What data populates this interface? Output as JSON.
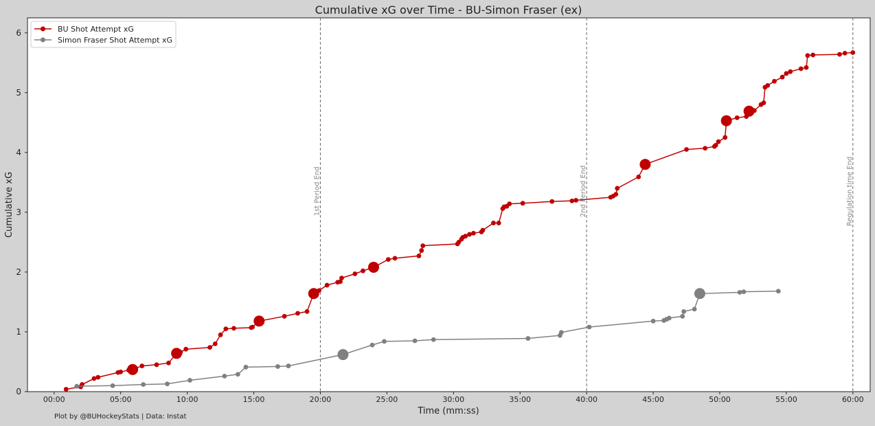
{
  "chart_data": {
    "type": "line",
    "title": "Cumulative xG over Time - BU-Simon Fraser (ex)",
    "xlabel": "Time (mm:ss)",
    "ylabel": "Cumulative xG",
    "xlim": [
      -2.0,
      61.3
    ],
    "ylim": [
      0,
      6.25
    ],
    "x_ticks": [
      0,
      5,
      10,
      15,
      20,
      25,
      30,
      35,
      40,
      45,
      50,
      55,
      60
    ],
    "x_tick_labels": [
      "00:00",
      "05:00",
      "10:00",
      "15:00",
      "20:00",
      "25:00",
      "30:00",
      "35:00",
      "40:00",
      "45:00",
      "50:00",
      "55:00",
      "60:00"
    ],
    "y_ticks": [
      0,
      1,
      2,
      3,
      4,
      5,
      6
    ],
    "y_tick_labels": [
      "0",
      "1",
      "2",
      "3",
      "4",
      "5",
      "6"
    ],
    "grid": false,
    "legend": "top-left",
    "vlines": [
      {
        "x": 20,
        "label": "1st Period End"
      },
      {
        "x": 40,
        "label": "2nd Period End"
      },
      {
        "x": 60,
        "label": "Regulation time End"
      }
    ],
    "series": [
      {
        "name": "BU Shot Attempt xG",
        "color": "#c00000",
        "x": [
          0.9,
          2.0,
          2.1,
          3.0,
          3.3,
          4.8,
          5.0,
          5.6,
          5.9,
          6.0,
          6.6,
          7.7,
          8.6,
          9.2,
          9.5,
          9.9,
          11.7,
          12.1,
          12.5,
          12.9,
          13.5,
          14.8,
          14.9,
          15.4,
          17.3,
          18.3,
          19.0,
          19.5,
          19.9,
          20.5,
          21.3,
          21.5,
          21.6,
          22.6,
          23.2,
          24.0,
          25.1,
          25.6,
          27.4,
          27.6,
          27.7,
          30.3,
          30.4,
          30.6,
          30.7,
          30.9,
          31.2,
          31.5,
          32.1,
          32.2,
          33.0,
          33.4,
          33.7,
          33.8,
          34.0,
          34.2,
          35.2,
          37.4,
          38.9,
          39.2,
          41.8,
          42.0,
          42.2,
          42.3,
          43.9,
          44.4,
          47.5,
          48.9,
          49.6,
          49.7,
          49.9,
          50.4,
          50.5,
          51.3,
          52.0,
          52.2,
          52.6,
          53.1,
          53.3,
          53.4,
          53.6,
          54.1,
          54.7,
          55.0,
          55.3,
          56.1,
          56.5,
          56.6,
          57.0,
          59.0,
          59.4,
          60.0
        ],
        "y": [
          0.04,
          0.08,
          0.12,
          0.22,
          0.24,
          0.32,
          0.33,
          0.36,
          0.37,
          0.38,
          0.43,
          0.45,
          0.48,
          0.64,
          0.66,
          0.71,
          0.74,
          0.8,
          0.95,
          1.05,
          1.06,
          1.07,
          1.08,
          1.18,
          1.26,
          1.31,
          1.34,
          1.64,
          1.69,
          1.78,
          1.83,
          1.84,
          1.9,
          1.97,
          2.02,
          2.08,
          2.21,
          2.23,
          2.27,
          2.36,
          2.44,
          2.47,
          2.5,
          2.55,
          2.58,
          2.6,
          2.63,
          2.65,
          2.67,
          2.7,
          2.82,
          2.82,
          3.06,
          3.09,
          3.1,
          3.14,
          3.15,
          3.18,
          3.19,
          3.2,
          3.25,
          3.27,
          3.3,
          3.4,
          3.59,
          3.8,
          4.05,
          4.07,
          4.1,
          4.12,
          4.18,
          4.25,
          4.53,
          4.58,
          4.6,
          4.69,
          4.7,
          4.8,
          4.83,
          5.09,
          5.12,
          5.19,
          5.26,
          5.32,
          5.35,
          5.4,
          5.42,
          5.62,
          5.63,
          5.64,
          5.66,
          5.67
        ],
        "large_markers": [
          5.9,
          9.2,
          15.4,
          19.5,
          24.0,
          44.4,
          50.5,
          52.2
        ]
      },
      {
        "name": "Simon Fraser Shot Attempt xG",
        "color": "#808080",
        "x": [
          1.7,
          4.4,
          6.7,
          8.5,
          10.2,
          12.8,
          13.8,
          14.4,
          16.8,
          17.6,
          21.7,
          23.9,
          24.8,
          27.1,
          28.5,
          35.6,
          38.0,
          38.1,
          40.2,
          45.0,
          45.8,
          46.0,
          46.2,
          47.2,
          47.3,
          48.1,
          48.5,
          51.5,
          51.8,
          54.4
        ],
        "y": [
          0.09,
          0.1,
          0.12,
          0.13,
          0.19,
          0.26,
          0.29,
          0.41,
          0.42,
          0.43,
          0.62,
          0.78,
          0.84,
          0.85,
          0.87,
          0.89,
          0.94,
          0.99,
          1.08,
          1.18,
          1.19,
          1.21,
          1.23,
          1.26,
          1.34,
          1.38,
          1.64,
          1.66,
          1.67,
          1.68
        ],
        "large_markers": [
          21.7,
          48.5
        ]
      }
    ]
  },
  "footer": {
    "credit": "Plot by @BUHockeyStats | Data: Instat"
  }
}
